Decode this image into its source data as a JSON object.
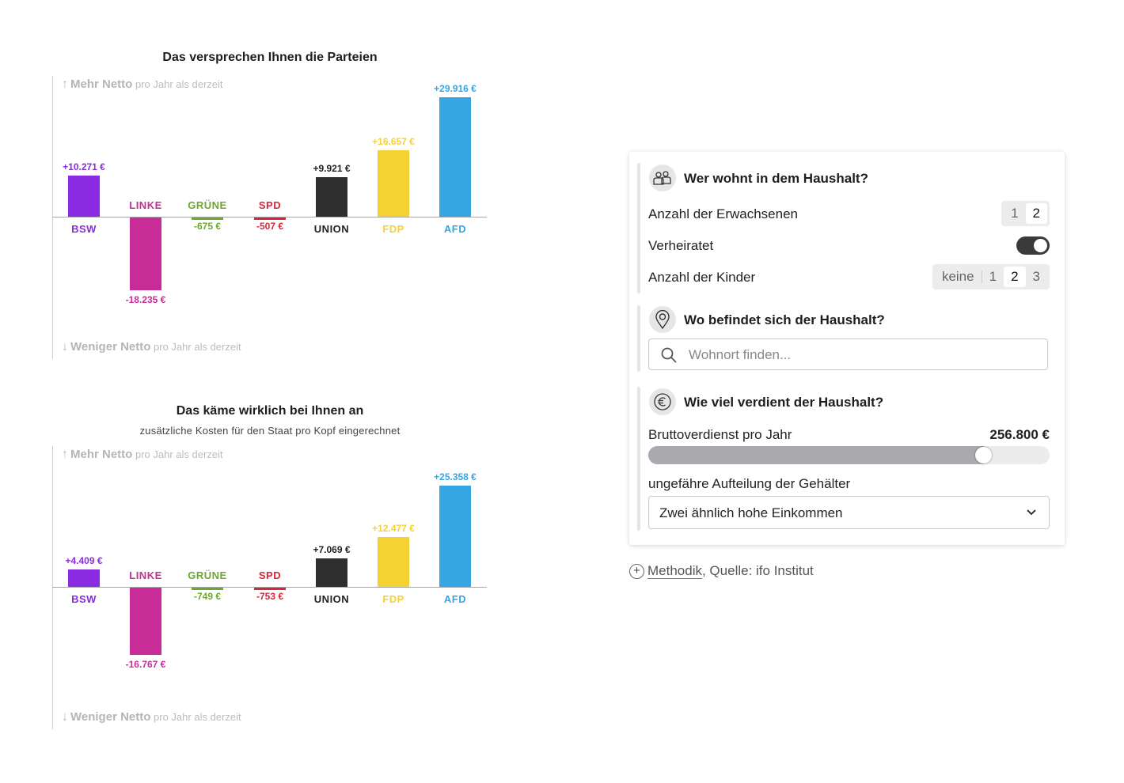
{
  "chart_data": [
    {
      "type": "bar",
      "title": "Das versprechen Ihnen die Parteien",
      "subtitle": "",
      "axis_top": {
        "bold": "Mehr Netto",
        "rest": "pro Jahr als derzeit"
      },
      "axis_bottom": {
        "bold": "Weniger Netto",
        "rest": "pro Jahr als derzeit"
      },
      "categories": [
        "BSW",
        "LINKE",
        "GRÜNE",
        "SPD",
        "UNION",
        "FDP",
        "AFD"
      ],
      "values": [
        10271,
        -18235,
        -675,
        -507,
        9921,
        16657,
        29916
      ],
      "value_labels": [
        "+10.271 €",
        "-18.235 €",
        "-675 €",
        "-507 €",
        "+9.921 €",
        "+16.657 €",
        "+29.916 €"
      ],
      "colors": [
        "#8a2be2",
        "#c72c97",
        "#6aaa2a",
        "#d6263a",
        "#2e2e2e",
        "#f5d233",
        "#36a6e3"
      ],
      "ylim": [
        -30000,
        30000
      ]
    },
    {
      "type": "bar",
      "title": "Das käme wirklich bei Ihnen an",
      "subtitle": "zusätzliche Kosten für den Staat pro Kopf eingerechnet",
      "axis_top": {
        "bold": "Mehr Netto",
        "rest": "pro Jahr als derzeit"
      },
      "axis_bottom": {
        "bold": "Weniger Netto",
        "rest": "pro Jahr als derzeit"
      },
      "categories": [
        "BSW",
        "LINKE",
        "GRÜNE",
        "SPD",
        "UNION",
        "FDP",
        "AFD"
      ],
      "values": [
        4409,
        -16767,
        -749,
        -753,
        7069,
        12477,
        25358
      ],
      "value_labels": [
        "+4.409 €",
        "-16.767 €",
        "-749 €",
        "-753 €",
        "+7.069 €",
        "+12.477 €",
        "+25.358 €"
      ],
      "colors": [
        "#8a2be2",
        "#c72c97",
        "#6aaa2a",
        "#d6263a",
        "#2e2e2e",
        "#f5d233",
        "#36a6e3"
      ],
      "ylim": [
        -30000,
        30000
      ]
    }
  ],
  "panel": {
    "household": {
      "title": "Wer wohnt in dem Haushalt?",
      "adults_label": "Anzahl der Erwachsenen",
      "adults_options": [
        "1",
        "2"
      ],
      "adults_selected": "2",
      "married_label": "Verheiratet",
      "married": true,
      "children_label": "Anzahl der Kinder",
      "children_options": [
        "keine",
        "1",
        "2",
        "3"
      ],
      "children_selected": "2"
    },
    "location": {
      "title": "Wo befindet sich der Haushalt?",
      "placeholder": "Wohnort finden...",
      "value": ""
    },
    "income": {
      "title": "Wie viel verdient der Haushalt?",
      "gross_label": "Bruttoverdienst pro Jahr",
      "gross_value": "256.800 €",
      "slider_fraction": 0.85,
      "split_label": "ungefähre Aufteilung der Gehälter",
      "split_value": "Zwei ähnlich hohe Einkommen"
    }
  },
  "footer": {
    "method_link": "Methodik",
    "source_text": ", Quelle: ifo Institut"
  },
  "icons": [
    "people-icon",
    "location-pin-icon",
    "euro-icon",
    "search-icon",
    "chevron-down-icon",
    "plus-circle-icon"
  ]
}
